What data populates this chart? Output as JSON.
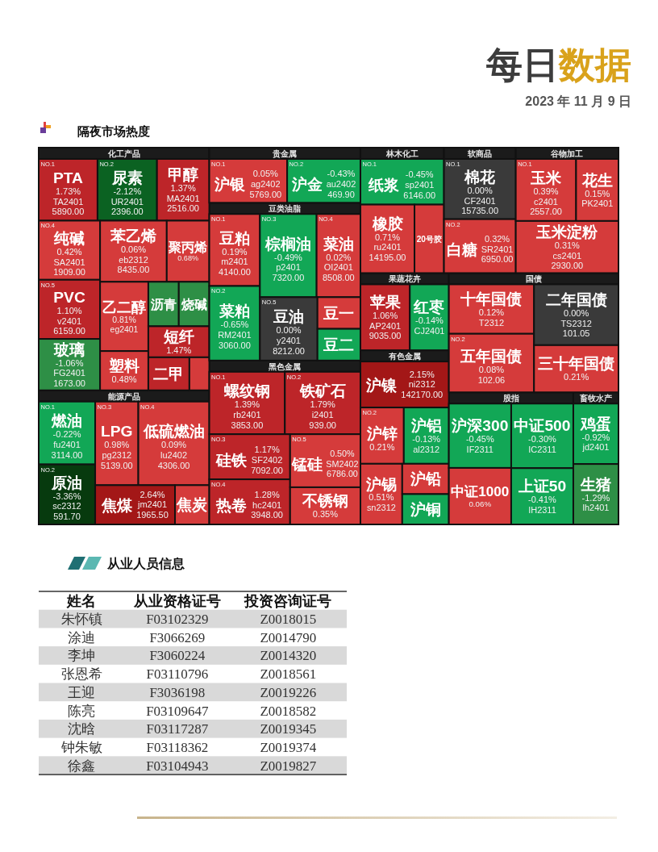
{
  "chart_data": [
    {
      "type": "other",
      "title": "每日数据",
      "subtitle": "2023 年 11 月 9 日"
    },
    {
      "type": "other",
      "title": "隔夜市场热度"
    },
    {
      "type": "other",
      "title": "化工产品",
      "categories": [
        "PTA",
        "尿素",
        "甲醇",
        "纯碱",
        "PVC",
        "玻璃",
        "苯乙烯",
        "聚丙烯",
        "乙二醇",
        "塑料",
        "沥青",
        "烧碱",
        "短纤",
        "二甲",
        null
      ],
      "cell_labels": [
        [
          "NO.1",
          "TA2401",
          "5890.00"
        ],
        [
          "NO.2",
          "UR2401",
          "2396.00"
        ],
        [
          null,
          "MA2401",
          "2516.00"
        ],
        [
          "NO.4",
          "SA2401",
          "1909.00"
        ],
        [
          "NO.5",
          "v2401",
          "6159.00"
        ],
        [
          null,
          "FG2401",
          "1673.00"
        ],
        [
          null,
          "eb2312",
          "8435.00"
        ],
        [
          null,
          null,
          null
        ],
        [
          null,
          "eg2401",
          null
        ],
        [
          null,
          null,
          null
        ],
        [
          null,
          null,
          null
        ],
        [
          null,
          null,
          null
        ],
        [
          null,
          null,
          null
        ],
        [
          null,
          null,
          null
        ],
        [
          null,
          null,
          null
        ]
      ],
      "series": [
        {
          "values": [
            1.73,
            -2.12,
            1.37,
            0.42,
            1.1,
            -1.06,
            0.06,
            0.68,
            0.81,
            0.48,
            null,
            null,
            1.47,
            null,
            null
          ],
          "value_labels": [
            "1.73%",
            "-2.12%",
            "1.37%",
            "0.42%",
            "1.10%",
            "-1.06%",
            "0.06%",
            "0.68%",
            "0.81%",
            "0.48%",
            null,
            null,
            "1.47%",
            null,
            null
          ],
          "colors": [
            "#bd2529",
            "#0b6222",
            "#bd2529",
            "#d53b3b",
            "#bd2529",
            "#2e8f46",
            "#d53b3b",
            "#d53b3b",
            "#d53b3b",
            "#d53b3b",
            "#2e8f46",
            "#2e8f46",
            "#bd2529",
            "#bd2529",
            "#d53b3b"
          ]
        }
      ]
    },
    {
      "type": "other",
      "title": "能源产品",
      "categories": [
        "燃油",
        "原油",
        "LPG",
        "低硫燃油",
        "焦煤",
        "焦炭"
      ],
      "cell_labels": [
        [
          "NO.1",
          "fu2401",
          "3114.00"
        ],
        [
          "NO.2",
          "sc2312",
          "591.70"
        ],
        [
          "NO.3",
          "pg2312",
          "5139.00"
        ],
        [
          "NO.4",
          "lu2402",
          "4306.00"
        ],
        [
          null,
          "jm2401",
          "1965.50"
        ],
        [
          null,
          null,
          null
        ]
      ],
      "series": [
        {
          "values": [
            -0.22,
            -3.36,
            0.98,
            0.09,
            2.64,
            null
          ],
          "value_labels": [
            "-0.22%",
            "-3.36%",
            "0.98%",
            "0.09%",
            "2.64%",
            null
          ],
          "colors": [
            "#12a756",
            "#073a0e",
            "#d53b3b",
            "#d53b3b",
            "#a31717",
            "#d53b3b"
          ]
        }
      ]
    },
    {
      "type": "other",
      "title": "贵金属",
      "categories": [
        "沪银",
        "沪金"
      ],
      "cell_labels": [
        [
          "NO.1",
          "ag2402",
          "5769.00"
        ],
        [
          "NO.2",
          "au2402",
          "469.90"
        ]
      ],
      "series": [
        {
          "values": [
            0.05,
            -0.43
          ],
          "value_labels": [
            "0.05%",
            "-0.43%"
          ],
          "colors": [
            "#d53b3b",
            "#12a756"
          ]
        }
      ]
    },
    {
      "type": "other",
      "title": "豆类油脂",
      "categories": [
        "豆粕",
        "菜粕",
        "棕榈油",
        "菜油",
        "豆油",
        "豆一",
        "豆二"
      ],
      "cell_labels": [
        [
          "NO.1",
          "m2401",
          "4140.00"
        ],
        [
          "NO.2",
          "RM2401",
          "3060.00"
        ],
        [
          "NO.3",
          "p2401",
          "7320.00"
        ],
        [
          "NO.4",
          "OI2401",
          "8508.00"
        ],
        [
          "NO.5",
          "y2401",
          "8212.00"
        ],
        [
          null,
          null,
          null
        ],
        [
          null,
          null,
          null
        ]
      ],
      "series": [
        {
          "values": [
            0.19,
            -0.65,
            -0.49,
            0.02,
            0,
            null,
            null
          ],
          "value_labels": [
            "0.19%",
            "-0.65%",
            "-0.49%",
            "0.02%",
            "0.00%",
            null,
            null
          ],
          "colors": [
            "#d53b3b",
            "#12a756",
            "#12a756",
            "#d53b3b",
            "#3a3a3a",
            "#d53b3b",
            "#12a756"
          ]
        }
      ]
    },
    {
      "type": "other",
      "title": "黑色金属",
      "categories": [
        "螺纹钢",
        "铁矿石",
        "硅铁",
        "热卷",
        "锰硅",
        "不锈钢"
      ],
      "cell_labels": [
        [
          "NO.1",
          "rb2401",
          "3853.00"
        ],
        [
          "NO.2",
          "i2401",
          "939.00"
        ],
        [
          "NO.3",
          "SF2402",
          "7092.00"
        ],
        [
          "NO.4",
          "hc2401",
          "3948.00"
        ],
        [
          "NO.5",
          "SM2402",
          "6786.00"
        ],
        [
          null,
          null,
          null
        ]
      ],
      "series": [
        {
          "values": [
            1.39,
            1.79,
            1.17,
            1.28,
            0.5,
            0.35
          ],
          "value_labels": [
            "1.39%",
            "1.79%",
            "1.17%",
            "1.28%",
            "0.50%",
            "0.35%"
          ],
          "colors": [
            "#bd2529",
            "#bd2529",
            "#bd2529",
            "#bd2529",
            "#d53b3b",
            "#d53b3b"
          ]
        }
      ]
    },
    {
      "type": "other",
      "title": "林木化工",
      "categories": [
        "纸浆",
        "橡胶",
        "20号胶"
      ],
      "cell_labels": [
        [
          "NO.1",
          "sp2401",
          "6146.00"
        ],
        [
          null,
          "ru2401",
          "14195.00"
        ],
        [
          null,
          null,
          null
        ]
      ],
      "series": [
        {
          "values": [
            -0.45,
            0.71,
            null
          ],
          "value_labels": [
            "-0.45%",
            "0.71%",
            null
          ],
          "colors": [
            "#12a756",
            "#d53b3b",
            "#d53b3b"
          ]
        }
      ]
    },
    {
      "type": "other",
      "title": "软商品",
      "categories": [
        "棉花",
        "白糖"
      ],
      "cell_labels": [
        [
          "NO.1",
          "CF2401",
          "15735.00"
        ],
        [
          "NO.2",
          "SR2401",
          "6950.00"
        ]
      ],
      "series": [
        {
          "values": [
            0,
            0.32
          ],
          "value_labels": [
            "0.00%",
            "0.32%"
          ],
          "colors": [
            "#3a3a3a",
            "#d53b3b"
          ]
        }
      ]
    },
    {
      "type": "other",
      "title": "谷物加工",
      "categories": [
        "玉米",
        "花生",
        "玉米淀粉"
      ],
      "cell_labels": [
        [
          "NO.1",
          "c2401",
          "2557.00"
        ],
        [
          null,
          "PK2401",
          null
        ],
        [
          null,
          "cs2401",
          "2930.00"
        ]
      ],
      "series": [
        {
          "values": [
            0.39,
            0.15,
            0.31
          ],
          "value_labels": [
            "0.39%",
            "0.15%",
            "0.31%"
          ],
          "colors": [
            "#d53b3b",
            "#d53b3b",
            "#d53b3b"
          ]
        }
      ]
    },
    {
      "type": "other",
      "title": "果蔬花卉",
      "categories": [
        "苹果",
        "红枣"
      ],
      "cell_labels": [
        [
          null,
          "AP2401",
          "9035.00"
        ],
        [
          null,
          "CJ2401",
          null
        ]
      ],
      "series": [
        {
          "values": [
            1.06,
            -0.14
          ],
          "value_labels": [
            "1.06%",
            "-0.14%"
          ],
          "colors": [
            "#bd2529",
            "#12a756"
          ]
        }
      ]
    },
    {
      "type": "other",
      "title": "有色金属",
      "categories": [
        "沪镍",
        "沪锌",
        "沪铝",
        "沪锡",
        "沪铅",
        "沪铜"
      ],
      "cell_labels": [
        [
          null,
          "ni2312",
          "142170.00"
        ],
        [
          "NO.2",
          null,
          null
        ],
        [
          null,
          "al2312",
          null
        ],
        [
          null,
          "sn2312",
          null
        ],
        [
          null,
          null,
          null
        ],
        [
          null,
          null,
          null
        ]
      ],
      "series": [
        {
          "values": [
            2.15,
            0.21,
            -0.13,
            0.51,
            null,
            null
          ],
          "value_labels": [
            "2.15%",
            "0.21%",
            "-0.13%",
            "0.51%",
            null,
            null
          ],
          "colors": [
            "#a31717",
            "#d53b3b",
            "#12a756",
            "#d53b3b",
            "#d53b3b",
            "#12a756"
          ]
        }
      ]
    },
    {
      "type": "other",
      "title": "国债",
      "categories": [
        "十年国债",
        "五年国债",
        "二年国债",
        "三十年国债"
      ],
      "cell_labels": [
        [
          null,
          "T2312",
          null
        ],
        [
          "NO.2",
          null,
          "102.06"
        ],
        [
          null,
          "TS2312",
          "101.05"
        ],
        [
          null,
          null,
          null
        ]
      ],
      "series": [
        {
          "values": [
            0.12,
            0.08,
            0,
            0.21
          ],
          "value_labels": [
            "0.12%",
            "0.08%",
            "0.00%",
            "0.21%"
          ],
          "colors": [
            "#d53b3b",
            "#d53b3b",
            "#3a3a3a",
            "#d53b3b"
          ]
        }
      ]
    },
    {
      "type": "other",
      "title": "股指",
      "categories": [
        "沪深300",
        "中证1000",
        "中证500",
        "上证50"
      ],
      "cell_labels": [
        [
          null,
          "IF2311",
          null
        ],
        [
          null,
          null,
          null
        ],
        [
          null,
          "IC2311",
          null
        ],
        [
          null,
          "IH2311",
          null
        ]
      ],
      "series": [
        {
          "values": [
            -0.45,
            0.06,
            -0.3,
            -0.41
          ],
          "value_labels": [
            "-0.45%",
            "0.06%",
            "-0.30%",
            "-0.41%"
          ],
          "colors": [
            "#12a756",
            "#d53b3b",
            "#12a756",
            "#12a756"
          ]
        }
      ]
    },
    {
      "type": "other",
      "title": "畜牧水产",
      "categories": [
        "鸡蛋",
        "生猪"
      ],
      "cell_labels": [
        [
          null,
          "jd2401",
          null
        ],
        [
          null,
          "lh2401",
          null
        ]
      ],
      "series": [
        {
          "values": [
            -0.92,
            -1.29
          ],
          "value_labels": [
            "-0.92%",
            "-1.29%"
          ],
          "colors": [
            "#12a756",
            "#2e8f46"
          ]
        }
      ]
    },
    {
      "type": "other",
      "title": "从业人员信息",
      "categories": [
        "姓名",
        "从业资格证号",
        "投资咨询证号"
      ],
      "cell_labels": [
        [
          "朱怀镇",
          "F03102329",
          "Z0018015"
        ],
        [
          "涂迪",
          "F3066269",
          "Z0014790"
        ],
        [
          "李坤",
          "F3060224",
          "Z0014320"
        ],
        [
          "张恩希",
          "F03110796",
          "Z0018561"
        ],
        [
          "王迎",
          "F3036198",
          "Z0019226"
        ],
        [
          "陈亮",
          "F03109647",
          "Z0018582"
        ],
        [
          "沈晗",
          "F03117287",
          "Z0019345"
        ],
        [
          "钟朱敏",
          "F03118362",
          "Z0019374"
        ],
        [
          "徐鑫",
          "F03104943",
          "Z0019827"
        ]
      ]
    }
  ]
}
